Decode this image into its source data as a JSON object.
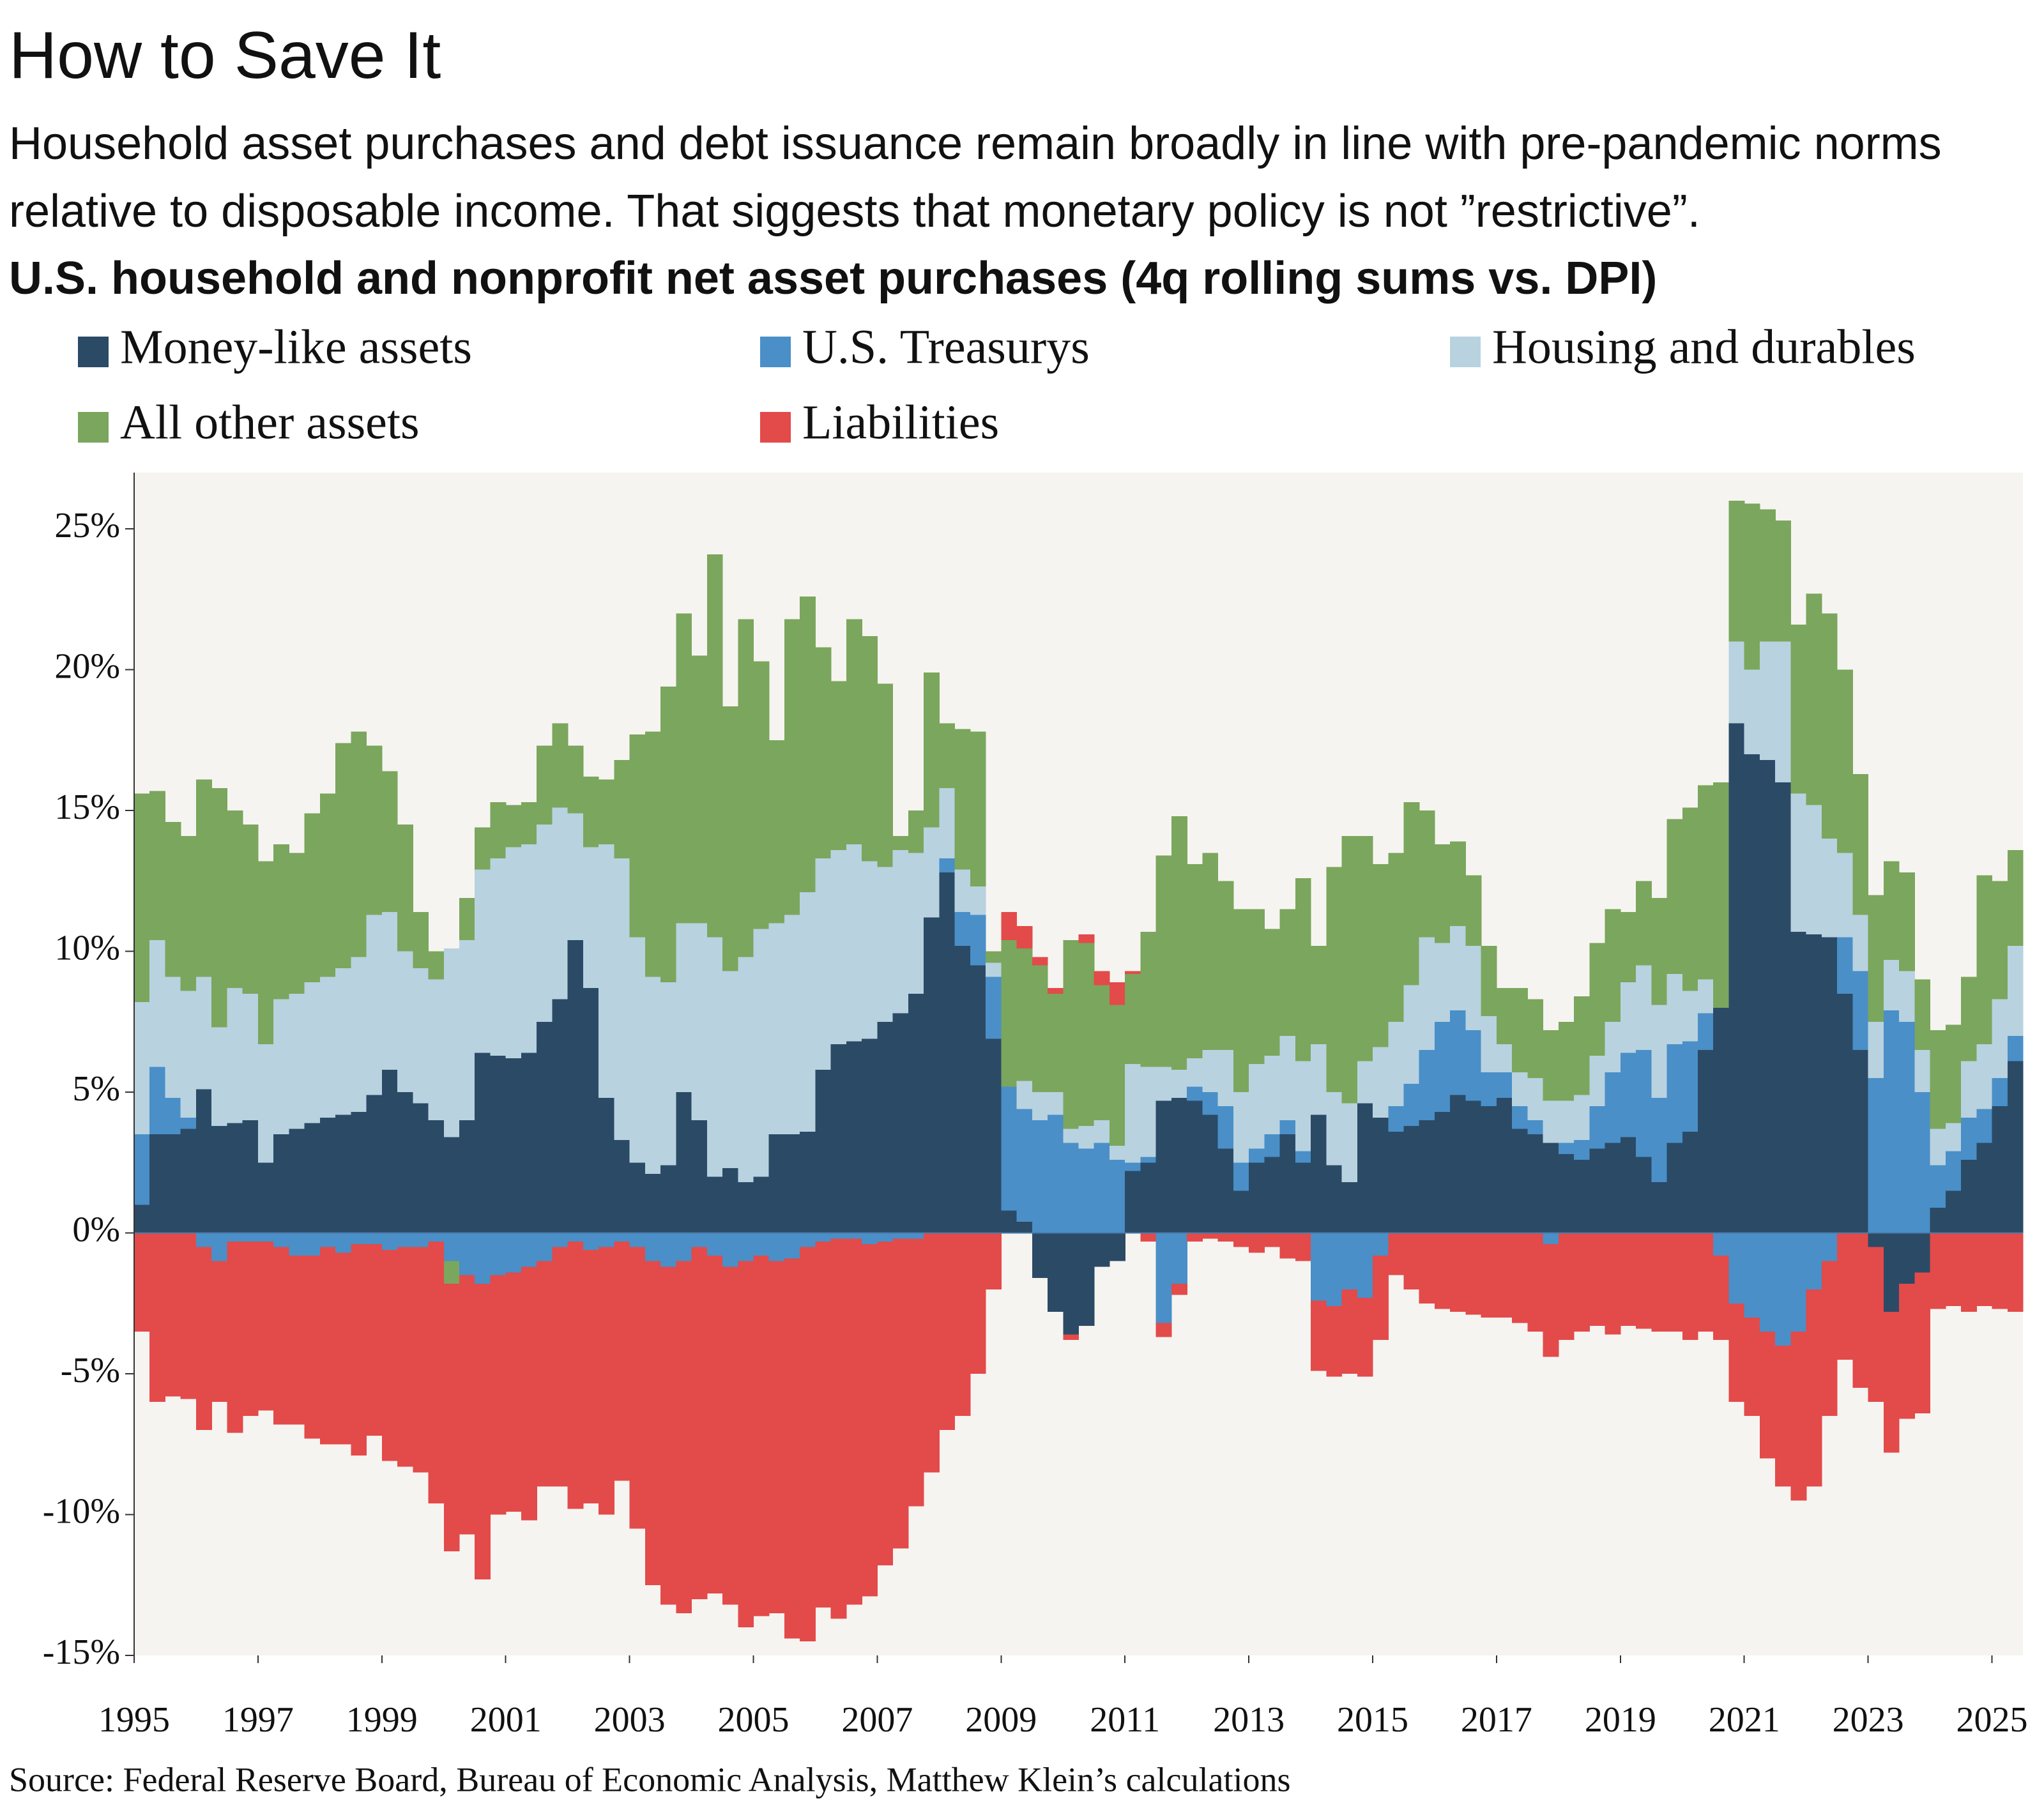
{
  "chart_data": {
    "type": "stacked-bar",
    "title": "How to Save It",
    "subtitle": "Household asset purchases and debt issuance remain broadly in line with pre-pandemic norms relative to disposable income. That siggests that monetary policy is not ”restrictive”.",
    "chart_heading": "U.S. household and nonprofit net asset purchases (4q rolling sums vs. DPI)",
    "source": "Source: Federal Reserve Board, Bureau of Economic Analysis, Matthew Klein’s calculations",
    "xlim": [
      1995,
      2025.5
    ],
    "xticks": [
      1995,
      1997,
      1999,
      2001,
      2003,
      2005,
      2007,
      2009,
      2011,
      2013,
      2015,
      2017,
      2019,
      2021,
      2023,
      2025
    ],
    "ylim": [
      -15,
      27
    ],
    "yticks": [
      {
        "value": -15,
        "label": "-15%"
      },
      {
        "value": -10,
        "label": "-10%"
      },
      {
        "value": -5,
        "label": "-5%"
      },
      {
        "value": 0,
        "label": "0%"
      },
      {
        "value": 5,
        "label": "5%"
      },
      {
        "value": 10,
        "label": "10%"
      },
      {
        "value": 15,
        "label": "15%"
      },
      {
        "value": 20,
        "label": "20%"
      },
      {
        "value": 25,
        "label": "25%"
      }
    ],
    "x": [
      1995,
      1995.25,
      1995.5,
      1995.75,
      1996,
      1996.25,
      1996.5,
      1996.75,
      1997,
      1997.25,
      1997.5,
      1997.75,
      1998,
      1998.25,
      1998.5,
      1998.75,
      1999,
      1999.25,
      1999.5,
      1999.75,
      2000,
      2000.25,
      2000.5,
      2000.75,
      2001,
      2001.25,
      2001.5,
      2001.75,
      2002,
      2002.25,
      2002.5,
      2002.75,
      2003,
      2003.25,
      2003.5,
      2003.75,
      2004,
      2004.25,
      2004.5,
      2004.75,
      2005,
      2005.25,
      2005.5,
      2005.75,
      2006,
      2006.25,
      2006.5,
      2006.75,
      2007,
      2007.25,
      2007.5,
      2007.75,
      2008,
      2008.25,
      2008.5,
      2008.75,
      2009,
      2009.25,
      2009.5,
      2009.75,
      2010,
      2010.25,
      2010.5,
      2010.75,
      2011,
      2011.25,
      2011.5,
      2011.75,
      2012,
      2012.25,
      2012.5,
      2012.75,
      2013,
      2013.25,
      2013.5,
      2013.75,
      2014,
      2014.25,
      2014.5,
      2014.75,
      2015,
      2015.25,
      2015.5,
      2015.75,
      2016,
      2016.25,
      2016.5,
      2016.75,
      2017,
      2017.25,
      2017.5,
      2017.75,
      2018,
      2018.25,
      2018.5,
      2018.75,
      2019,
      2019.25,
      2019.5,
      2019.75,
      2020,
      2020.25,
      2020.5,
      2020.75,
      2021,
      2021.25,
      2021.5,
      2021.75,
      2022,
      2022.25,
      2022.5,
      2022.75,
      2023,
      2023.25,
      2023.5,
      2023.75,
      2024,
      2024.25,
      2024.5,
      2024.75,
      2025,
      2025.25
    ],
    "series": [
      {
        "name": "Money-like assets",
        "color": "#2b4a66",
        "values": [
          1.0,
          3.5,
          3.5,
          3.7,
          5.1,
          3.8,
          3.9,
          4.0,
          2.5,
          3.5,
          3.7,
          3.9,
          4.1,
          4.2,
          4.3,
          4.9,
          5.8,
          5.0,
          4.6,
          4.0,
          3.4,
          4.0,
          6.4,
          6.3,
          6.2,
          6.4,
          7.5,
          8.3,
          10.4,
          8.7,
          4.8,
          3.3,
          2.5,
          2.1,
          2.4,
          5.0,
          4.0,
          2.0,
          2.3,
          1.8,
          2.0,
          3.5,
          3.5,
          3.6,
          5.8,
          6.7,
          6.8,
          6.9,
          7.5,
          7.8,
          8.5,
          11.2,
          12.8,
          10.2,
          9.5,
          6.9,
          0.8,
          0.4,
          -1.6,
          -2.8,
          -3.6,
          -3.3,
          -1.2,
          -1.0,
          2.2,
          2.5,
          4.7,
          4.8,
          4.7,
          4.2,
          3.0,
          1.5,
          2.5,
          2.7,
          3.5,
          2.5,
          4.2,
          2.4,
          1.8,
          4.6,
          4.1,
          3.6,
          3.8,
          4.0,
          4.3,
          4.9,
          4.7,
          4.5,
          4.8,
          3.7,
          3.5,
          3.2,
          2.8,
          2.6,
          3.0,
          3.2,
          3.4,
          2.7,
          1.8,
          3.2,
          3.6,
          6.5,
          8.0,
          18.1,
          17.0,
          16.8,
          16.0,
          10.7,
          10.6,
          10.5,
          8.5,
          6.5,
          -0.5,
          -2.8,
          -1.8,
          -1.4,
          0.9,
          1.5,
          2.6,
          3.2,
          4.5,
          6.1
        ]
      },
      {
        "name": "U.S. Treasurys",
        "color": "#4a8fc7",
        "values": [
          2.5,
          2.4,
          1.3,
          0.4,
          -0.5,
          -1.0,
          -0.3,
          -0.3,
          -0.3,
          -0.5,
          -0.8,
          -0.8,
          -0.5,
          -0.7,
          -0.4,
          -0.4,
          -0.6,
          -0.5,
          -0.5,
          -0.3,
          -1.0,
          -1.5,
          -1.8,
          -1.5,
          -1.4,
          -1.2,
          -1.0,
          -0.5,
          -0.3,
          -0.6,
          -0.5,
          -0.3,
          -0.5,
          -1.0,
          -1.2,
          -1.0,
          -0.5,
          -0.8,
          -1.2,
          -1.0,
          -0.8,
          -1.0,
          -0.9,
          -0.5,
          -0.3,
          -0.2,
          -0.2,
          -0.4,
          -0.3,
          -0.2,
          -0.2,
          0.0,
          0.5,
          1.2,
          1.8,
          2.2,
          4.4,
          4.0,
          4.0,
          4.2,
          3.2,
          3.0,
          3.2,
          2.6,
          0.3,
          0.2,
          -3.2,
          -1.8,
          0.5,
          0.8,
          1.5,
          1.0,
          0.5,
          0.8,
          0.5,
          0.4,
          -2.4,
          -2.6,
          -2.0,
          -2.3,
          -0.8,
          0.9,
          1.5,
          2.5,
          3.2,
          3.0,
          2.5,
          1.2,
          0.9,
          0.8,
          0.5,
          -0.4,
          0.4,
          0.7,
          1.5,
          2.5,
          3.0,
          3.8,
          3.0,
          3.5,
          3.2,
          1.3,
          -0.8,
          -2.5,
          -3.0,
          -3.5,
          -4.0,
          -3.5,
          -2.0,
          -1.0,
          2.0,
          2.8,
          5.5,
          7.9,
          7.5,
          5.0,
          1.5,
          1.4,
          1.5,
          1.2,
          1.0,
          0.9
        ]
      },
      {
        "name": "Housing and durables",
        "color": "#b8d2e0",
        "values": [
          4.7,
          4.5,
          4.3,
          4.5,
          4.0,
          3.5,
          4.8,
          4.5,
          4.2,
          4.8,
          4.8,
          5.0,
          5.0,
          5.2,
          5.5,
          6.4,
          5.6,
          5.0,
          4.8,
          5.0,
          6.7,
          6.4,
          6.5,
          7.0,
          7.5,
          7.4,
          7.0,
          6.8,
          4.5,
          5.0,
          9.0,
          10.0,
          8.0,
          7.0,
          6.5,
          6.0,
          7.0,
          8.5,
          7.0,
          8.0,
          8.8,
          7.5,
          7.8,
          8.5,
          7.5,
          6.9,
          7.0,
          6.3,
          5.5,
          5.8,
          5.0,
          3.2,
          2.5,
          1.5,
          1.0,
          0.5,
          0.0,
          1.0,
          1.0,
          0.8,
          0.5,
          0.8,
          0.8,
          0.5,
          3.5,
          3.2,
          1.2,
          1.0,
          1.0,
          1.5,
          2.0,
          2.5,
          3.0,
          2.8,
          3.0,
          3.2,
          2.5,
          2.6,
          2.8,
          1.5,
          2.5,
          3.0,
          3.5,
          4.0,
          2.8,
          3.0,
          3.0,
          2.0,
          1.0,
          1.2,
          1.5,
          1.5,
          1.5,
          1.6,
          1.8,
          1.8,
          2.5,
          3.0,
          3.3,
          2.5,
          1.8,
          1.2,
          0.0,
          2.9,
          3.0,
          4.2,
          5.0,
          4.9,
          4.6,
          3.5,
          3.0,
          2.0,
          2.0,
          1.8,
          1.8,
          1.5,
          1.3,
          1.0,
          2.0,
          2.3,
          2.8,
          3.2
        ]
      },
      {
        "name": "All other assets",
        "color": "#7ba65d",
        "values": [
          7.4,
          5.3,
          5.5,
          5.5,
          7.0,
          8.5,
          6.3,
          6.0,
          6.5,
          5.5,
          5.0,
          6.0,
          6.5,
          8.0,
          8.0,
          6.0,
          5.0,
          4.5,
          2.0,
          1.0,
          -0.8,
          1.5,
          1.5,
          2.0,
          1.5,
          1.5,
          2.8,
          3.0,
          2.4,
          2.5,
          2.3,
          3.5,
          7.2,
          8.7,
          10.5,
          11.0,
          9.5,
          13.6,
          9.4,
          12.0,
          9.5,
          6.5,
          10.5,
          10.5,
          7.5,
          6.0,
          8.0,
          8.0,
          6.5,
          0.5,
          1.5,
          5.5,
          2.3,
          5.0,
          5.5,
          0.4,
          5.2,
          4.7,
          4.5,
          3.5,
          6.7,
          6.5,
          4.8,
          5.0,
          3.2,
          4.8,
          7.5,
          9.0,
          6.9,
          7.0,
          6.0,
          6.5,
          5.5,
          4.5,
          4.5,
          6.5,
          3.5,
          8.0,
          9.5,
          8.0,
          6.5,
          6.0,
          6.5,
          4.5,
          3.5,
          3.0,
          2.5,
          2.5,
          2.0,
          3.0,
          2.8,
          2.5,
          2.8,
          3.5,
          4.0,
          4.0,
          2.5,
          3.0,
          3.8,
          5.5,
          6.5,
          6.9,
          8.0,
          5.0,
          5.9,
          4.7,
          4.3,
          6.0,
          7.5,
          8.0,
          6.5,
          5.0,
          4.5,
          3.5,
          3.5,
          2.5,
          3.5,
          3.5,
          3.0,
          6.0,
          4.2,
          3.4
        ]
      },
      {
        "name": "Liabilities",
        "color": "#e34a4a",
        "values": [
          -3.5,
          -6.0,
          -5.8,
          -5.9,
          -6.5,
          -5.0,
          -6.8,
          -6.2,
          -6.0,
          -6.3,
          -6.0,
          -6.5,
          -7.0,
          -6.8,
          -7.5,
          -6.8,
          -7.5,
          -7.8,
          -8.0,
          -9.3,
          -9.5,
          -9.2,
          -10.5,
          -8.5,
          -8.5,
          -9.0,
          -8.0,
          -8.5,
          -9.5,
          -9.0,
          -9.5,
          -8.5,
          -10.0,
          -11.5,
          -12.0,
          -12.5,
          -12.5,
          -12.0,
          -12.0,
          -13.0,
          -12.8,
          -12.5,
          -13.5,
          -14.0,
          -13.0,
          -13.5,
          -13.0,
          -12.5,
          -11.5,
          -11.0,
          -9.5,
          -8.5,
          -7.0,
          -6.5,
          -5.0,
          -2.0,
          1.0,
          0.8,
          0.3,
          0.2,
          -0.2,
          0.3,
          0.5,
          0.8,
          0.1,
          -0.3,
          -0.5,
          -0.4,
          -0.3,
          -0.2,
          -0.3,
          -0.5,
          -0.7,
          -0.5,
          -0.9,
          -1.0,
          -2.5,
          -2.5,
          -3.0,
          -2.8,
          -3.0,
          -1.5,
          -2.0,
          -2.5,
          -2.7,
          -2.8,
          -2.9,
          -3.0,
          -3.0,
          -3.2,
          -3.5,
          -4.0,
          -3.8,
          -3.5,
          -3.3,
          -3.6,
          -3.3,
          -3.4,
          -3.5,
          -3.5,
          -3.8,
          -3.5,
          -3.0,
          -3.5,
          -3.5,
          -4.5,
          -5.0,
          -6.0,
          -7.0,
          -5.5,
          -4.5,
          -5.5,
          -5.5,
          -5.0,
          -4.8,
          -5.0,
          -2.7,
          -2.6,
          -2.8,
          -2.6,
          -2.7,
          -2.8
        ]
      }
    ]
  }
}
